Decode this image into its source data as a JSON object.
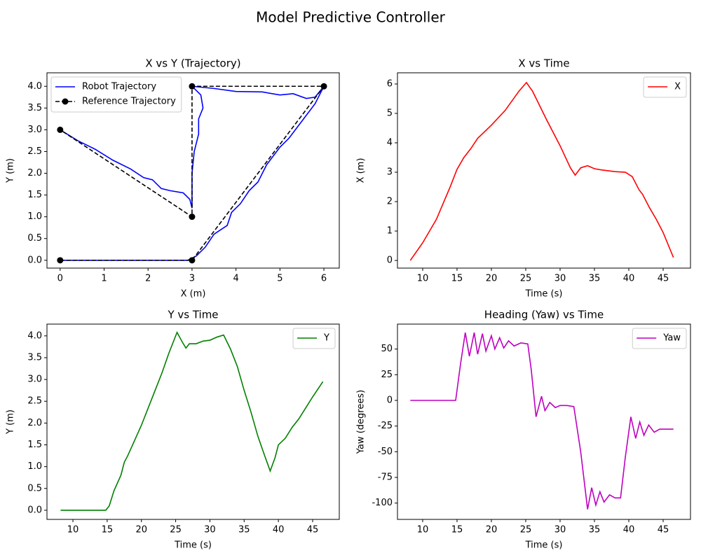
{
  "title": "Model Predictive Controller",
  "chart_data": [
    {
      "type": "line",
      "title": "X vs Y (Trajectory)",
      "xlabel": "X (m)",
      "ylabel": "Y (m)",
      "legend": "upper left",
      "xlim": [
        -0.3,
        6.35
      ],
      "xticks": [
        0,
        1,
        2,
        3,
        4,
        5,
        6
      ],
      "ylim": [
        -0.18,
        4.31
      ],
      "yticks": [
        {
          "value": 0,
          "label": "0.0"
        },
        {
          "value": 0.5,
          "label": "0.5"
        },
        {
          "value": 1,
          "label": "1.0"
        },
        {
          "value": 1.5,
          "label": "1.5"
        },
        {
          "value": 2,
          "label": "2.0"
        },
        {
          "value": 2.5,
          "label": "2.5"
        },
        {
          "value": 3,
          "label": "3.0"
        },
        {
          "value": 3.5,
          "label": "3.5"
        },
        {
          "value": 4,
          "label": "4.0"
        }
      ],
      "series": [
        {
          "name": "Robot Trajectory",
          "color": "#0000ff",
          "x": [
            0,
            1,
            2,
            2.9,
            3.1,
            3.3,
            3.5,
            3.8,
            3.9,
            4.1,
            4.3,
            4.5,
            4.7,
            5,
            5.2,
            5.5,
            5.8,
            6,
            5.8,
            5.6,
            5.3,
            5,
            4.6,
            4,
            3.5,
            3,
            3.2,
            3.25,
            3.15,
            3.15,
            3.05,
            3,
            3,
            2.95,
            2.8,
            2.5,
            2.3,
            2.1,
            1.9,
            1.6,
            1.2,
            0.8,
            0.4,
            0
          ],
          "values": [
            0,
            0,
            0,
            0,
            0.1,
            0.3,
            0.6,
            0.8,
            1.1,
            1.3,
            1.6,
            1.8,
            2.2,
            2.6,
            2.8,
            3.2,
            3.6,
            4,
            3.75,
            3.72,
            3.83,
            3.8,
            3.87,
            3.88,
            3.95,
            4,
            3.8,
            3.5,
            3.25,
            2.9,
            2.5,
            2,
            1.2,
            1.4,
            1.55,
            1.6,
            1.65,
            1.85,
            1.9,
            2.1,
            2.3,
            2.55,
            2.75,
            3
          ]
        },
        {
          "name": "Reference Trajectory",
          "color": "#000000",
          "linestyle": "dashed",
          "marker": "o",
          "x": [
            0,
            3,
            6,
            3,
            3,
            0
          ],
          "values": [
            0,
            0,
            4,
            4,
            1,
            3
          ]
        }
      ]
    },
    {
      "type": "line",
      "title": "X vs Time",
      "xlabel": "Time (s)",
      "ylabel": "X (m)",
      "legend": "upper right",
      "xlim": [
        6.33,
        48.98
      ],
      "xticks": [
        10,
        15,
        20,
        25,
        30,
        35,
        40,
        45
      ],
      "ylim": [
        -0.26,
        6.38
      ],
      "yticks": [
        0,
        1,
        2,
        3,
        4,
        5,
        6
      ],
      "series": [
        {
          "name": "X",
          "color": "#ff0000",
          "x": [
            8.2,
            10,
            12,
            14,
            15,
            16,
            17,
            18,
            20,
            22,
            24,
            25.1,
            26,
            28,
            30,
            31.5,
            32.2,
            33,
            34,
            35,
            36,
            38,
            39.5,
            40.5,
            41.5,
            42,
            43,
            44,
            45,
            46.5
          ],
          "values": [
            0,
            0.6,
            1.4,
            2.5,
            3.1,
            3.5,
            3.8,
            4.15,
            4.6,
            5.1,
            5.75,
            6.05,
            5.75,
            4.8,
            3.9,
            3.15,
            2.9,
            3.15,
            3.22,
            3.12,
            3.08,
            3.02,
            3,
            2.85,
            2.4,
            2.25,
            1.8,
            1.4,
            0.95,
            0.1
          ]
        }
      ]
    },
    {
      "type": "line",
      "title": "Y vs Time",
      "xlabel": "Time (s)",
      "ylabel": "Y (m)",
      "legend": "upper right",
      "xlim": [
        6.21,
        48.89
      ],
      "xticks": [
        10,
        15,
        20,
        25,
        30,
        35,
        40,
        45
      ],
      "ylim": [
        -0.21,
        4.27
      ],
      "yticks": [
        {
          "value": 0,
          "label": "0.0"
        },
        {
          "value": 0.5,
          "label": "0.5"
        },
        {
          "value": 1,
          "label": "1.0"
        },
        {
          "value": 1.5,
          "label": "1.5"
        },
        {
          "value": 2,
          "label": "2.0"
        },
        {
          "value": 2.5,
          "label": "2.5"
        },
        {
          "value": 3,
          "label": "3.0"
        },
        {
          "value": 3.5,
          "label": "3.5"
        },
        {
          "value": 4,
          "label": "4.0"
        }
      ],
      "series": [
        {
          "name": "Y",
          "color": "#008000",
          "x": [
            8.2,
            12,
            14.8,
            15.3,
            16,
            17,
            17.5,
            18,
            19,
            20,
            21,
            22,
            23,
            24,
            25.2,
            26,
            26.5,
            27,
            28,
            29,
            30,
            31,
            32,
            33,
            34,
            35,
            36,
            37,
            38,
            38.8,
            39.5,
            40,
            41,
            42,
            43,
            44,
            45,
            46.5
          ],
          "values": [
            0,
            0,
            0,
            0.1,
            0.45,
            0.8,
            1.1,
            1.25,
            1.6,
            1.95,
            2.35,
            2.75,
            3.15,
            3.6,
            4.08,
            3.85,
            3.72,
            3.82,
            3.82,
            3.88,
            3.9,
            3.97,
            4.02,
            3.7,
            3.3,
            2.75,
            2.25,
            1.7,
            1.25,
            0.9,
            1.2,
            1.5,
            1.65,
            1.9,
            2.1,
            2.35,
            2.6,
            2.95
          ]
        }
      ]
    },
    {
      "type": "line",
      "title": "Heading (Yaw) vs Time",
      "xlabel": "Time (s)",
      "ylabel": "Yaw (degrees)",
      "legend": "upper right",
      "xlim": [
        6.33,
        48.98
      ],
      "xticks": [
        10,
        15,
        20,
        25,
        30,
        35,
        40,
        45
      ],
      "ylim": [
        -115.9,
        74.3
      ],
      "yticks": [
        -100,
        -75,
        -50,
        -25,
        0,
        25,
        50
      ],
      "series": [
        {
          "name": "Yaw",
          "color": "#bf00bf",
          "x": [
            8.2,
            12,
            14.8,
            15.5,
            16.2,
            16.8,
            17.5,
            18,
            18.7,
            19.2,
            20,
            20.5,
            21.2,
            21.8,
            22.5,
            23.3,
            24.3,
            25.3,
            25.8,
            26.5,
            27.3,
            27.8,
            28.5,
            29.3,
            30,
            31,
            32,
            33,
            34,
            34.6,
            35.2,
            35.8,
            36.4,
            37.2,
            38,
            38.8,
            39.5,
            40.3,
            41,
            41.6,
            42.2,
            42.9,
            43.7,
            44.5,
            46.5
          ],
          "values": [
            0,
            0,
            0,
            35,
            66,
            43,
            66,
            45,
            65,
            48,
            63,
            50,
            61,
            51,
            58,
            53,
            56,
            55,
            30,
            -16,
            4,
            -10,
            -2,
            -7,
            -5,
            -5,
            -6,
            -50,
            -106,
            -85,
            -102,
            -89,
            -99,
            -92,
            -95,
            -95,
            -55,
            -16,
            -37,
            -21,
            -34,
            -24,
            -31,
            -28,
            -28
          ]
        }
      ]
    }
  ]
}
